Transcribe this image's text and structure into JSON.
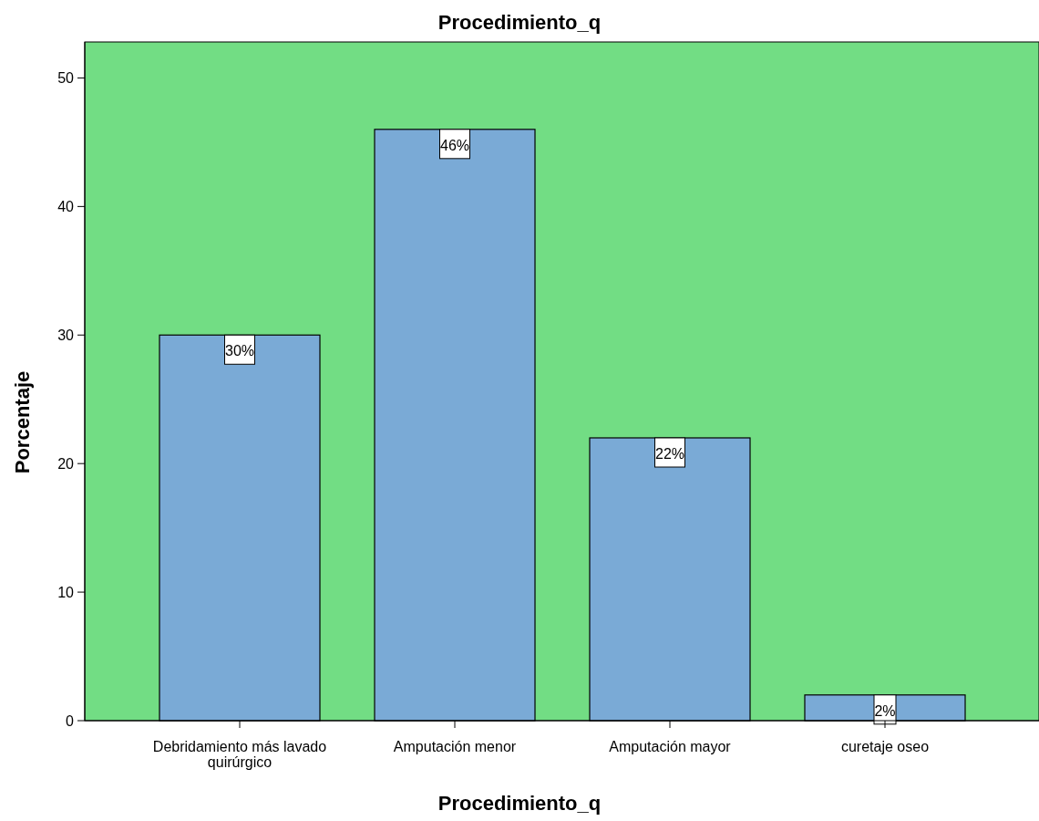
{
  "chart_data": {
    "type": "bar",
    "title": "Procedimiento_q",
    "xlabel": "Procedimiento_q",
    "ylabel": "Porcentaje",
    "categories": [
      "Debridamiento más lavado quirúrgico",
      "Amputación menor",
      "Amputación mayor",
      "curetaje oseo"
    ],
    "values": [
      30,
      46,
      22,
      2
    ],
    "value_labels": [
      "30%",
      "46%",
      "22%",
      "2%"
    ],
    "color": "#7aaad6",
    "ylim": [
      0,
      52.8
    ],
    "yticks": [
      0,
      10,
      20,
      30,
      40,
      50
    ],
    "grid": false
  }
}
